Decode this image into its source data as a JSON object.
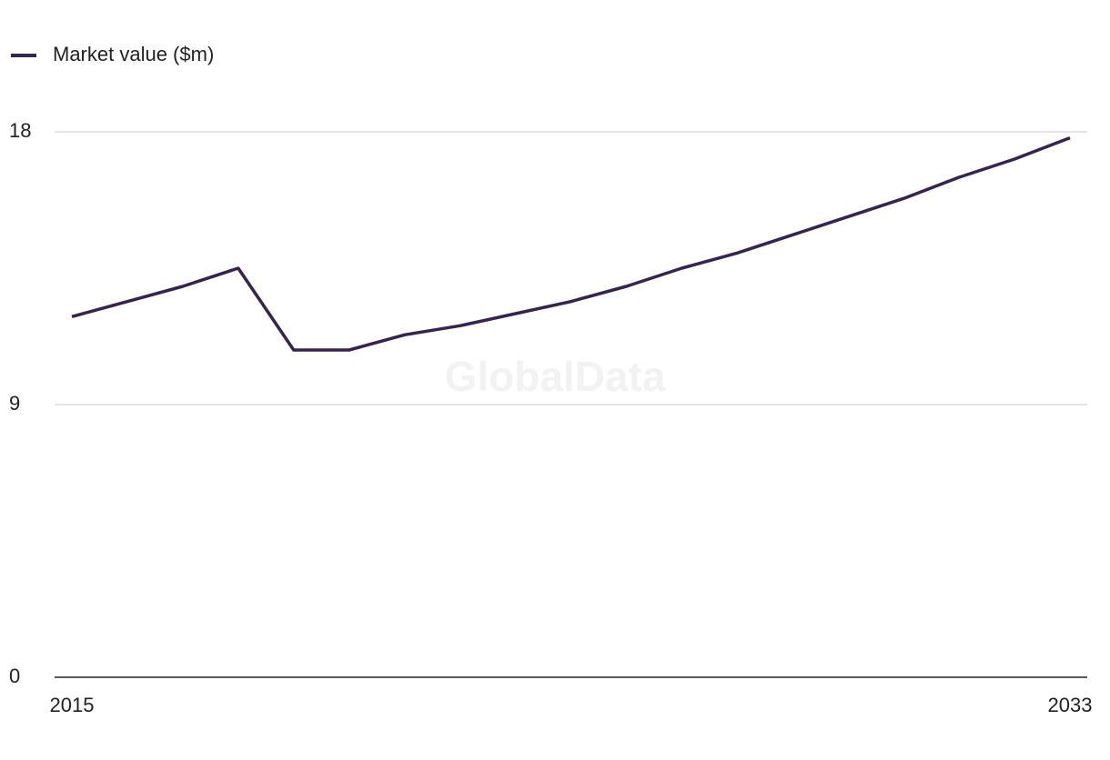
{
  "chart_data": {
    "type": "line",
    "x": [
      2015,
      2016,
      2017,
      2018,
      2019,
      2020,
      2021,
      2022,
      2023,
      2024,
      2025,
      2026,
      2027,
      2028,
      2029,
      2030,
      2031,
      2032,
      2033
    ],
    "series": [
      {
        "name": "Market value ($m)",
        "color": "#35244f",
        "values": [
          11.9,
          12.4,
          12.9,
          13.5,
          10.8,
          10.8,
          11.3,
          11.6,
          12.0,
          12.4,
          12.9,
          13.5,
          14.0,
          14.6,
          15.2,
          15.8,
          16.5,
          17.1,
          17.8
        ]
      }
    ],
    "xlim": [
      2015,
      2033
    ],
    "xticks": [
      2015,
      2033
    ],
    "ylim": [
      0,
      18
    ],
    "yticks": [
      0,
      9,
      18
    ],
    "grid": true,
    "legend": "top-left",
    "watermark": "GlobalData"
  }
}
